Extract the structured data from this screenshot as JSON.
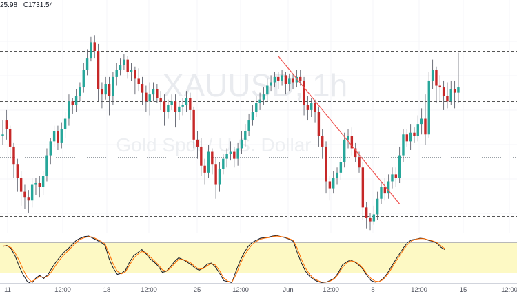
{
  "legend": {
    "high": "25.98",
    "close": "C1731.54"
  },
  "watermark": {
    "symbol": "XAUUSD, 1h",
    "description": "Gold Spot / U.S. Dollar"
  },
  "colors": {
    "up": "#26a69a",
    "down": "#c62828",
    "trendline": "#ef5350",
    "stoch_k": "#131722",
    "stoch_d": "#ff6d00",
    "stoch_band": "#fdf9c4"
  },
  "chart_data": [
    {
      "type": "candlestick",
      "x_ticks": [
        "11",
        "12:00",
        "18",
        "12:00",
        "25",
        "12:00",
        "Jun",
        "12:00",
        "8",
        "12:00",
        "15",
        "12:00"
      ],
      "candles": [
        [
          0.46,
          0.47,
          0.41,
          0.55
        ],
        [
          0.55,
          0.5,
          0.44,
          0.61
        ],
        [
          0.5,
          0.4,
          0.33,
          0.52
        ],
        [
          0.4,
          0.3,
          0.22,
          0.42
        ],
        [
          0.3,
          0.22,
          0.14,
          0.33
        ],
        [
          0.22,
          0.14,
          0.06,
          0.26
        ],
        [
          0.14,
          0.11,
          0.04,
          0.18
        ],
        [
          0.11,
          0.09,
          0.02,
          0.15
        ],
        [
          0.09,
          0.18,
          0.05,
          0.22
        ],
        [
          0.18,
          0.19,
          0.12,
          0.22
        ],
        [
          0.19,
          0.17,
          0.11,
          0.23
        ],
        [
          0.17,
          0.23,
          0.12,
          0.26
        ],
        [
          0.23,
          0.35,
          0.2,
          0.39
        ],
        [
          0.35,
          0.43,
          0.3,
          0.45
        ],
        [
          0.43,
          0.49,
          0.4,
          0.52
        ],
        [
          0.49,
          0.42,
          0.38,
          0.52
        ],
        [
          0.42,
          0.5,
          0.39,
          0.54
        ],
        [
          0.5,
          0.56,
          0.45,
          0.6
        ],
        [
          0.56,
          0.66,
          0.52,
          0.7
        ],
        [
          0.66,
          0.64,
          0.59,
          0.68
        ],
        [
          0.64,
          0.69,
          0.6,
          0.73
        ],
        [
          0.69,
          0.74,
          0.66,
          0.77
        ],
        [
          0.74,
          0.84,
          0.71,
          0.88
        ],
        [
          0.84,
          0.91,
          0.81,
          0.96
        ],
        [
          0.91,
          1.0,
          0.89,
          1.03
        ],
        [
          1.0,
          0.95,
          0.91,
          1.04
        ],
        [
          0.95,
          0.73,
          0.66,
          0.99
        ],
        [
          0.73,
          0.7,
          0.62,
          0.77
        ],
        [
          0.7,
          0.76,
          0.67,
          0.8
        ],
        [
          0.76,
          0.69,
          0.58,
          0.8
        ],
        [
          0.69,
          0.8,
          0.64,
          0.83
        ],
        [
          0.8,
          0.84,
          0.75,
          0.88
        ],
        [
          0.84,
          0.87,
          0.81,
          0.91
        ],
        [
          0.87,
          0.9,
          0.84,
          0.93
        ],
        [
          0.9,
          0.83,
          0.79,
          0.92
        ],
        [
          0.83,
          0.84,
          0.78,
          0.88
        ],
        [
          0.84,
          0.79,
          0.7,
          0.86
        ],
        [
          0.79,
          0.76,
          0.72,
          0.85
        ],
        [
          0.76,
          0.71,
          0.64,
          0.8
        ],
        [
          0.71,
          0.66,
          0.6,
          0.75
        ],
        [
          0.66,
          0.7,
          0.58,
          0.77
        ],
        [
          0.7,
          0.73,
          0.66,
          0.77
        ],
        [
          0.73,
          0.68,
          0.65,
          0.76
        ],
        [
          0.68,
          0.66,
          0.61,
          0.72
        ],
        [
          0.66,
          0.6,
          0.52,
          0.7
        ],
        [
          0.6,
          0.64,
          0.56,
          0.67
        ],
        [
          0.64,
          0.66,
          0.61,
          0.7
        ],
        [
          0.66,
          0.6,
          0.51,
          0.7
        ],
        [
          0.6,
          0.63,
          0.55,
          0.66
        ],
        [
          0.63,
          0.64,
          0.58,
          0.68
        ],
        [
          0.64,
          0.68,
          0.6,
          0.72
        ],
        [
          0.68,
          0.61,
          0.55,
          0.71
        ],
        [
          0.61,
          0.44,
          0.39,
          0.63
        ],
        [
          0.44,
          0.4,
          0.33,
          0.49
        ],
        [
          0.4,
          0.29,
          0.23,
          0.45
        ],
        [
          0.29,
          0.25,
          0.18,
          0.33
        ],
        [
          0.25,
          0.37,
          0.22,
          0.41
        ],
        [
          0.37,
          0.3,
          0.24,
          0.39
        ],
        [
          0.3,
          0.18,
          0.1,
          0.34
        ],
        [
          0.18,
          0.27,
          0.14,
          0.31
        ],
        [
          0.27,
          0.33,
          0.24,
          0.36
        ],
        [
          0.33,
          0.36,
          0.28,
          0.39
        ],
        [
          0.36,
          0.37,
          0.32,
          0.43
        ],
        [
          0.37,
          0.33,
          0.28,
          0.4
        ],
        [
          0.33,
          0.39,
          0.29,
          0.42
        ],
        [
          0.39,
          0.44,
          0.36,
          0.49
        ],
        [
          0.44,
          0.49,
          0.4,
          0.53
        ],
        [
          0.49,
          0.55,
          0.46,
          0.59
        ],
        [
          0.55,
          0.6,
          0.52,
          0.64
        ],
        [
          0.6,
          0.65,
          0.57,
          0.69
        ],
        [
          0.65,
          0.67,
          0.61,
          0.71
        ],
        [
          0.67,
          0.7,
          0.64,
          0.74
        ],
        [
          0.7,
          0.75,
          0.66,
          0.79
        ],
        [
          0.75,
          0.77,
          0.72,
          0.81
        ],
        [
          0.77,
          0.8,
          0.74,
          0.83
        ],
        [
          0.8,
          0.78,
          0.73,
          0.83
        ],
        [
          0.78,
          0.81,
          0.75,
          0.84
        ],
        [
          0.81,
          0.76,
          0.7,
          0.83
        ],
        [
          0.76,
          0.79,
          0.72,
          0.82
        ],
        [
          0.79,
          0.77,
          0.73,
          0.82
        ],
        [
          0.77,
          0.8,
          0.74,
          0.84
        ],
        [
          0.8,
          0.78,
          0.75,
          0.84
        ],
        [
          0.78,
          0.64,
          0.58,
          0.8
        ],
        [
          0.64,
          0.61,
          0.55,
          0.69
        ],
        [
          0.61,
          0.65,
          0.57,
          0.68
        ],
        [
          0.65,
          0.6,
          0.54,
          0.67
        ],
        [
          0.6,
          0.46,
          0.4,
          0.63
        ],
        [
          0.46,
          0.4,
          0.33,
          0.5
        ],
        [
          0.4,
          0.2,
          0.13,
          0.43
        ],
        [
          0.2,
          0.16,
          0.09,
          0.23
        ],
        [
          0.16,
          0.22,
          0.13,
          0.26
        ],
        [
          0.22,
          0.25,
          0.18,
          0.28
        ],
        [
          0.25,
          0.31,
          0.21,
          0.35
        ],
        [
          0.31,
          0.44,
          0.28,
          0.48
        ],
        [
          0.44,
          0.46,
          0.39,
          0.5
        ],
        [
          0.46,
          0.39,
          0.35,
          0.51
        ],
        [
          0.39,
          0.34,
          0.31,
          0.42
        ],
        [
          0.34,
          0.28,
          0.25,
          0.37
        ],
        [
          0.28,
          0.05,
          -0.02,
          0.31
        ],
        [
          0.05,
          -0.01,
          -0.07,
          0.08
        ],
        [
          -0.01,
          -0.03,
          -0.08,
          0.02
        ],
        [
          -0.03,
          0.01,
          -0.05,
          0.06
        ],
        [
          0.01,
          0.1,
          -0.02,
          0.14
        ],
        [
          0.1,
          0.17,
          0.07,
          0.2
        ],
        [
          0.17,
          0.13,
          0.09,
          0.22
        ],
        [
          0.13,
          0.2,
          0.1,
          0.24
        ],
        [
          0.2,
          0.24,
          0.16,
          0.28
        ],
        [
          0.24,
          0.22,
          0.17,
          0.28
        ],
        [
          0.22,
          0.35,
          0.19,
          0.4
        ],
        [
          0.35,
          0.47,
          0.31,
          0.5
        ],
        [
          0.47,
          0.43,
          0.4,
          0.5
        ],
        [
          0.43,
          0.48,
          0.38,
          0.53
        ],
        [
          0.48,
          0.46,
          0.42,
          0.51
        ],
        [
          0.46,
          0.53,
          0.43,
          0.58
        ],
        [
          0.53,
          0.56,
          0.47,
          0.62
        ],
        [
          0.56,
          0.47,
          0.41,
          0.7
        ],
        [
          0.47,
          0.78,
          0.45,
          0.83
        ],
        [
          0.78,
          0.84,
          0.73,
          0.9
        ],
        [
          0.84,
          0.75,
          0.65,
          0.86
        ],
        [
          0.75,
          0.74,
          0.66,
          0.81
        ],
        [
          0.74,
          0.69,
          0.61,
          0.78
        ],
        [
          0.69,
          0.66,
          0.62,
          0.77
        ],
        [
          0.66,
          0.73,
          0.64,
          0.78
        ],
        [
          0.73,
          0.71,
          0.62,
          0.78
        ],
        [
          0.71,
          0.74,
          0.65,
          0.94
        ]
      ],
      "horizontal_lines": [
        {
          "style": "dashed",
          "level": 0.95
        },
        {
          "style": "dashed",
          "level": 0.66
        },
        {
          "style": "dotted",
          "level": 0.34
        },
        {
          "style": "dashed",
          "level": 0.0
        }
      ],
      "trendline": {
        "from": [
          75,
          0.92
        ],
        "to": [
          108,
          0.07
        ]
      }
    },
    {
      "type": "line",
      "indicator": "stochastic",
      "band": [
        20,
        80
      ],
      "series": [
        {
          "color": "#131722",
          "values": [
            72,
            74,
            68,
            54,
            34,
            17,
            4,
            0,
            10,
            16,
            10,
            17,
            30,
            42,
            52,
            61,
            68,
            76,
            84,
            88,
            91,
            92,
            88,
            84,
            80,
            74,
            48,
            30,
            18,
            20,
            26,
            42,
            54,
            60,
            66,
            58,
            48,
            42,
            34,
            22,
            24,
            33,
            43,
            50,
            47,
            42,
            37,
            30,
            26,
            30,
            38,
            40,
            32,
            20,
            6,
            4,
            2,
            24,
            44,
            60,
            72,
            80,
            84,
            88,
            89,
            90,
            92,
            93,
            91,
            89,
            86,
            82,
            60,
            40,
            24,
            14,
            8,
            4,
            2,
            3,
            6,
            10,
            21,
            36,
            42,
            46,
            42,
            36,
            28,
            16,
            6,
            3,
            4,
            10,
            20,
            33,
            46,
            58,
            70,
            80,
            85,
            86,
            88,
            87,
            84,
            82,
            79,
            71,
            66
          ]
        },
        {
          "color": "#ff6d00",
          "values": [
            73,
            73,
            70,
            60,
            45,
            27,
            12,
            4,
            8,
            14,
            12,
            14,
            24,
            36,
            47,
            56,
            64,
            72,
            80,
            86,
            89,
            91,
            90,
            86,
            82,
            77,
            58,
            38,
            24,
            19,
            23,
            36,
            49,
            57,
            62,
            60,
            52,
            45,
            37,
            27,
            24,
            30,
            39,
            47,
            47,
            44,
            40,
            33,
            28,
            29,
            35,
            39,
            36,
            25,
            11,
            5,
            3,
            17,
            37,
            54,
            66,
            76,
            82,
            86,
            88,
            89,
            91,
            92,
            91,
            90,
            87,
            84,
            68,
            47,
            30,
            18,
            10,
            6,
            3,
            3,
            5,
            9,
            18,
            31,
            40,
            44,
            43,
            38,
            30,
            19,
            10,
            5,
            4,
            8,
            17,
            29,
            42,
            54,
            66,
            76,
            83,
            86,
            87,
            87,
            85,
            83,
            80,
            74,
            68
          ]
        }
      ]
    }
  ]
}
